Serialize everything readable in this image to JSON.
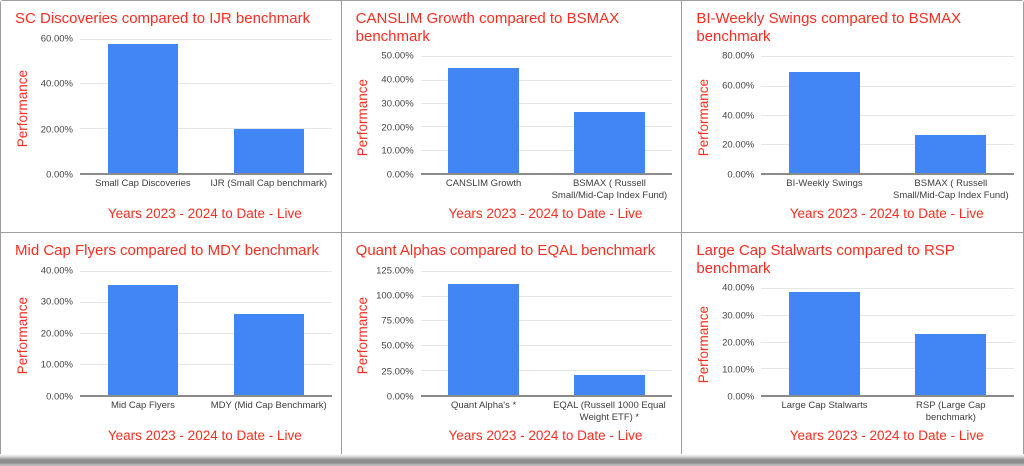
{
  "colors": {
    "bar_blue": "#4285f4",
    "accent_red": "#fb2d20",
    "gridline": "#e6e6e6",
    "axis_line": "#8a8a8a",
    "tick_text": "#444444",
    "panel_border": "#9e9e9e"
  },
  "chart_data": [
    {
      "type": "bar",
      "title": "SC Discoveries compared to IJR benchmark",
      "ylabel": "Performance",
      "caption": "Years 2023 - 2024 to Date - Live",
      "categories": [
        "Small Cap Discoveries",
        "IJR (Small Cap benchmark)"
      ],
      "values": [
        57.5,
        19.5
      ],
      "ymax": 60,
      "ticks": [
        0,
        20,
        40,
        60
      ],
      "tick_labels": [
        "0.00%",
        "20.00%",
        "40.00%",
        "60.00%"
      ],
      "grid": true,
      "legend": "none"
    },
    {
      "type": "bar",
      "title": "CANSLIM Growth compared to BSMAX benchmark",
      "ylabel": "Performance",
      "caption": "Years 2023 - 2024 to Date - Live",
      "categories": [
        "CANSLIM Growth",
        "BSMAX ( Russell Small/Mid-Cap Index Fund)"
      ],
      "values": [
        45,
        26
      ],
      "ymax": 50,
      "ticks": [
        0,
        10,
        20,
        30,
        40,
        50
      ],
      "tick_labels": [
        "0.00%",
        "10.00%",
        "20.00%",
        "30.00%",
        "40.00%",
        "50.00%"
      ],
      "grid": true,
      "legend": "none"
    },
    {
      "type": "bar",
      "title": "BI-Weekly Swings compared to BSMAX benchmark",
      "ylabel": "Performance",
      "caption": "Years 2023 - 2024 to Date - Live",
      "categories": [
        "BI-Weekly Swings",
        "BSMAX ( Russell Small/Mid-Cap Index Fund)"
      ],
      "values": [
        69.5,
        26
      ],
      "ymax": 80,
      "ticks": [
        0,
        20,
        40,
        60,
        80
      ],
      "tick_labels": [
        "0.00%",
        "20.00%",
        "40.00%",
        "60.00%",
        "80.00%"
      ],
      "grid": true,
      "legend": "none"
    },
    {
      "type": "bar",
      "title": "Mid Cap Flyers compared to MDY benchmark",
      "ylabel": "Performance",
      "caption": "Years 2023 - 2024 to Date - Live",
      "categories": [
        "Mid Cap Flyers",
        "MDY (Mid Cap Benchmark)"
      ],
      "values": [
        35.5,
        26
      ],
      "ymax": 40,
      "ticks": [
        0,
        10,
        20,
        30,
        40
      ],
      "tick_labels": [
        "0.00%",
        "10.00%",
        "20.00%",
        "30.00%",
        "40.00%"
      ],
      "grid": true,
      "legend": "none"
    },
    {
      "type": "bar",
      "title": "Quant Alphas compared to EQAL benchmark",
      "ylabel": "Performance",
      "caption": "Years 2023 - 2024 to Date - Live",
      "categories": [
        "Quant Alpha's  *",
        "EQAL (Russell 1000 Equal Weight ETF)  *"
      ],
      "values": [
        112,
        20
      ],
      "ymax": 125,
      "ticks": [
        0,
        25,
        50,
        75,
        100,
        125
      ],
      "tick_labels": [
        "0.00%",
        "25.00%",
        "50.00%",
        "75.00%",
        "100.00%",
        "125.00%"
      ],
      "grid": true,
      "legend": "none"
    },
    {
      "type": "bar",
      "title": "Large Cap Stalwarts compared to RSP benchmark",
      "ylabel": "Performance",
      "caption": "Years 2023 - 2024 to Date - Live",
      "categories": [
        "Large Cap Stalwarts",
        "RSP (Large Cap benchmark)"
      ],
      "values": [
        38.5,
        23
      ],
      "ymax": 40,
      "ticks": [
        0,
        10,
        20,
        30,
        40
      ],
      "tick_labels": [
        "0.00%",
        "10.00%",
        "20.00%",
        "30.00%",
        "40.00%"
      ],
      "grid": true,
      "legend": "none"
    }
  ]
}
